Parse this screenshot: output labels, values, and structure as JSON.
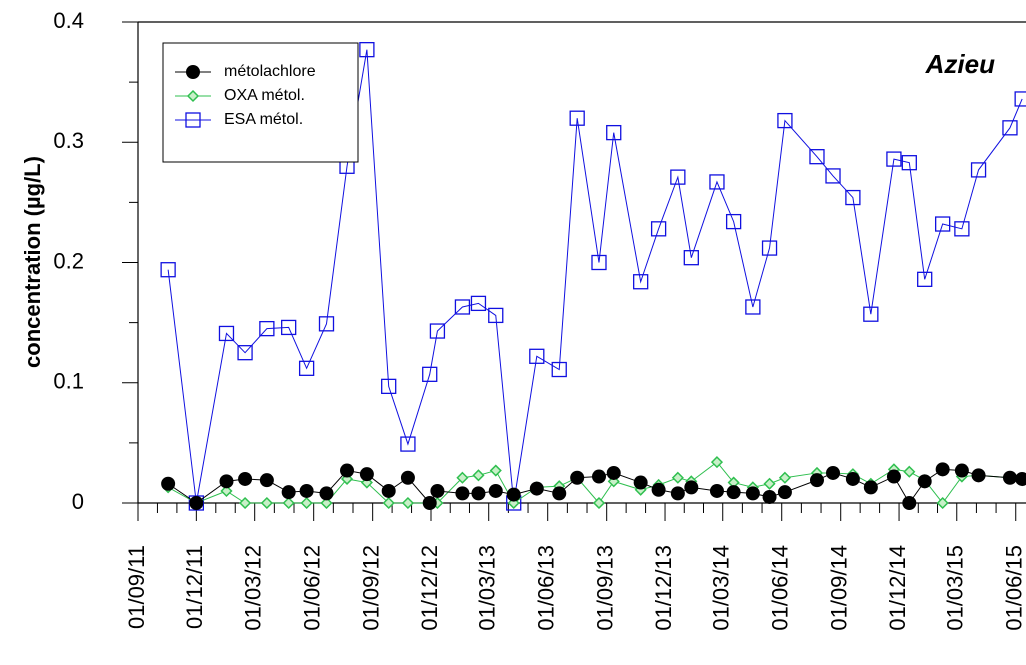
{
  "chart_data": {
    "type": "line",
    "y_label": "concentration (µg/L)",
    "annotation": "Azieu",
    "x": [
      "18/10/11",
      "01/12/11",
      "17/01/12",
      "15/02/12",
      "20/03/12",
      "23/04/12",
      "21/05/12",
      "21/06/12",
      "23/07/12",
      "23/08/12",
      "26/09/12",
      "26/10/12",
      "29/11/12",
      "11/12/12",
      "19/01/13",
      "13/02/13",
      "12/03/13",
      "09/04/13",
      "15/05/13",
      "19/06/13",
      "17/07/13",
      "20/08/13",
      "12/09/13",
      "24/10/13",
      "21/11/13",
      "21/12/13",
      "11/01/14",
      "20/02/14",
      "18/03/14",
      "17/04/14",
      "13/05/14",
      "06/06/14",
      "26/07/14",
      "20/08/14",
      "20/09/14",
      "18/10/14",
      "23/11/14",
      "17/12/14",
      "10/01/15",
      "07/02/15",
      "09/03/15",
      "04/04/15",
      "23/05/15",
      "11/06/15"
    ],
    "series": [
      {
        "name": "métolachlore",
        "color": "#000000",
        "marker": "circle",
        "values": [
          0.016,
          0,
          0.018,
          0.02,
          0.019,
          0.009,
          0.01,
          0.008,
          0.027,
          0.024,
          0.01,
          0.021,
          0,
          0.01,
          0.008,
          0.008,
          0.01,
          0.007,
          0.012,
          0.008,
          0.021,
          0.022,
          0.025,
          0.017,
          0.011,
          0.008,
          0.013,
          0.01,
          0.009,
          0.008,
          0.005,
          0.009,
          0.019,
          0.025,
          0.02,
          0.013,
          0.022,
          0,
          0.018,
          0.028,
          0.027,
          0.023,
          0.021,
          0.02
        ]
      },
      {
        "name": "OXA métol.",
        "color": "#2fbf4f",
        "marker": "diamond",
        "values": [
          0.013,
          0,
          0.01,
          0,
          0,
          0,
          0,
          0,
          0.02,
          0.017,
          0,
          0,
          0,
          0,
          0.021,
          0.023,
          0.027,
          0,
          0.013,
          0.014,
          0.021,
          0,
          0.018,
          0.011,
          0.015,
          0.021,
          0.018,
          0.034,
          0.017,
          0.013,
          0.016,
          0.021,
          0.025,
          0.025,
          0.024,
          0.016,
          0.028,
          0.026,
          0.019,
          0,
          0.022,
          0.023,
          0.021,
          0.019
        ]
      },
      {
        "name": "ESA métol.",
        "color": "#1010e0",
        "marker": "square",
        "values": [
          0.194,
          0,
          0.141,
          0.125,
          0.145,
          0.146,
          0.112,
          0.149,
          0.28,
          0.377,
          0.097,
          0.049,
          0.107,
          0.143,
          0.163,
          0.166,
          0.156,
          0,
          0.122,
          0.111,
          0.32,
          0.2,
          0.308,
          0.184,
          0.228,
          0.271,
          0.204,
          0.267,
          0.234,
          0.163,
          0.212,
          0.318,
          0.288,
          0.272,
          0.254,
          0.157,
          0.286,
          0.283,
          0.186,
          0.232,
          0.228,
          0.277,
          0.312,
          0.336
        ]
      }
    ],
    "xlim": [
      "01/09/11",
      "17/06/15"
    ],
    "xticks": [
      "01/09/11",
      "01/12/11",
      "01/03/12",
      "01/06/12",
      "01/09/12",
      "01/12/12",
      "01/03/13",
      "01/06/13",
      "01/09/13",
      "01/12/13",
      "01/03/14",
      "01/06/14",
      "01/09/14",
      "01/12/14",
      "01/03/15",
      "01/06/15"
    ],
    "ylim": [
      0,
      0.4
    ],
    "yticks": [
      0,
      0.1,
      0.2,
      0.3,
      0.4
    ],
    "grid": false,
    "legend": "upper left"
  }
}
